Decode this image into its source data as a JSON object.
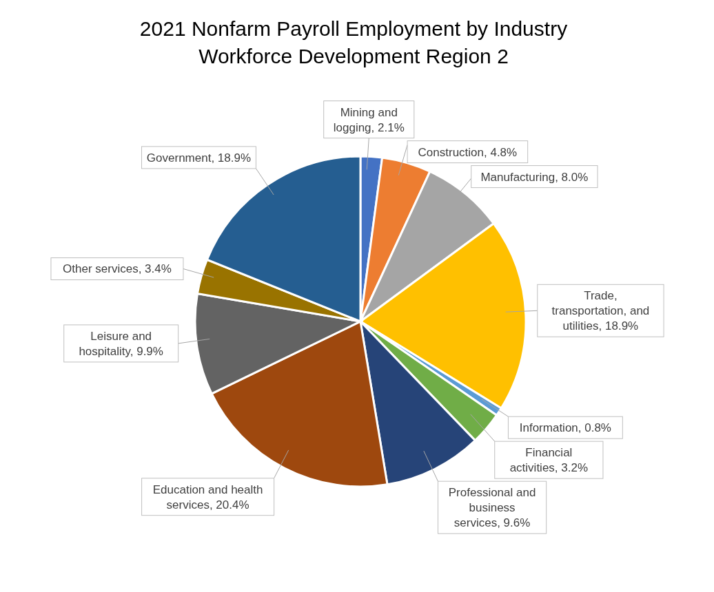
{
  "chart_data": {
    "type": "pie",
    "title": "2021 Nonfarm Payroll Employment by Industry",
    "subtitle": "Workforce Development Region 2",
    "categories": [
      "Mining and logging",
      "Construction",
      "Manufacturing",
      "Trade, transportation, and utilities",
      "Information",
      "Financial activities",
      "Professional and business services",
      "Education and health services",
      "Leisure and hospitality",
      "Other services",
      "Government"
    ],
    "values": [
      2.1,
      4.8,
      8.0,
      18.9,
      0.8,
      3.2,
      9.6,
      20.4,
      9.9,
      3.4,
      18.9
    ],
    "value_labels": [
      "2.1%",
      "4.8%",
      "8.0%",
      "18.9%",
      "0.8%",
      "3.2%",
      "9.6%",
      "20.4%",
      "9.9%",
      "3.4%",
      "18.9%"
    ],
    "colors": [
      "#4472c4",
      "#ed7d31",
      "#a5a5a5",
      "#ffc000",
      "#5b9bd5",
      "#70ad47",
      "#264478",
      "#9e480e",
      "#636363",
      "#997300",
      "#255e91"
    ]
  }
}
